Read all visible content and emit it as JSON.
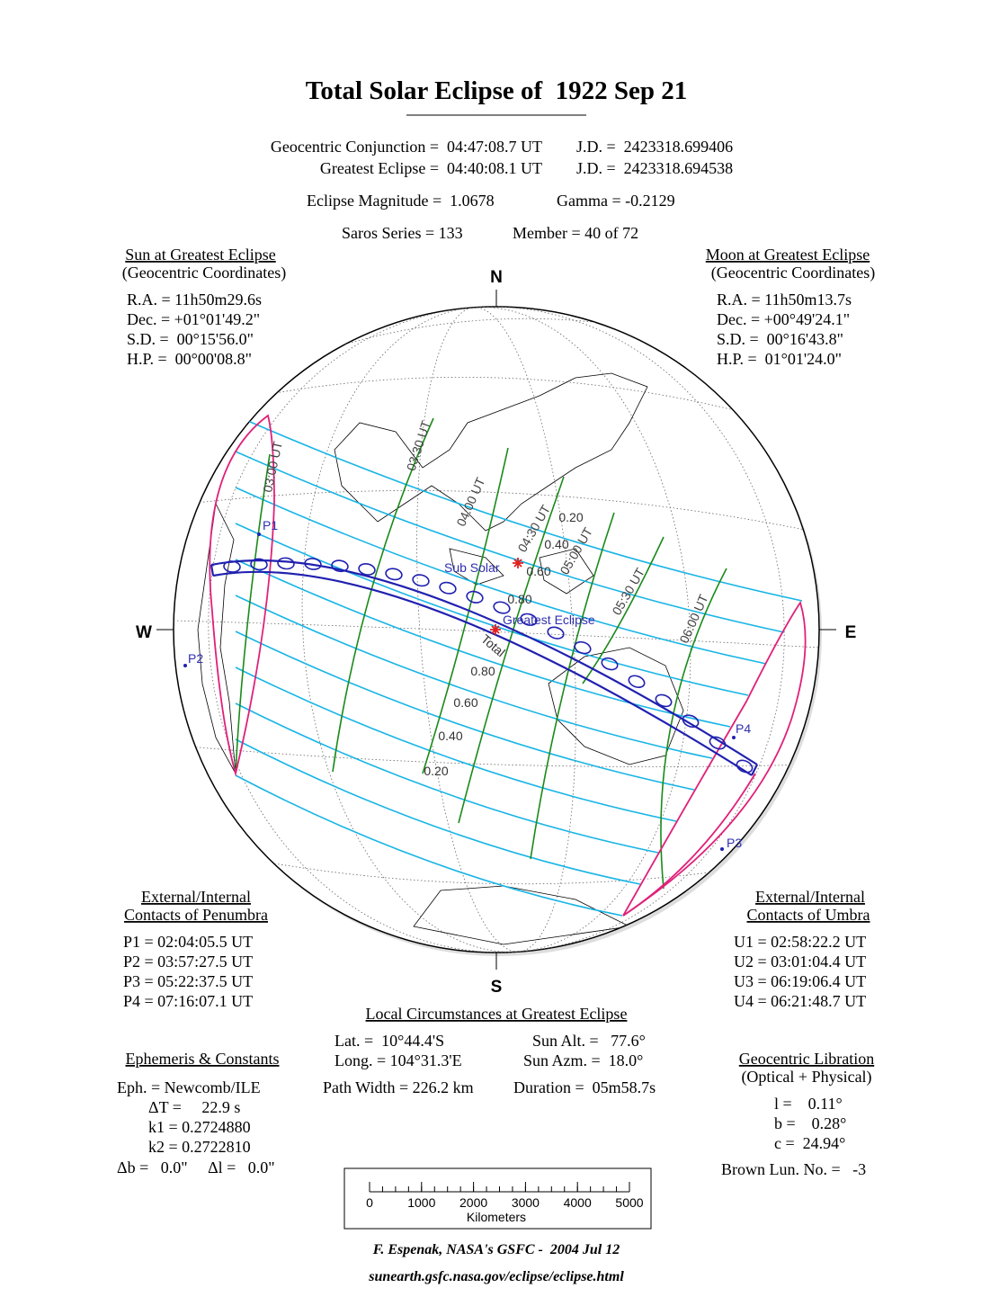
{
  "header": {
    "title": "Total Solar Eclipse of  1922 Sep 21",
    "conjunction": "Geocentric Conjunction =  04:47:08.7 UT",
    "conjunction_jd": "J.D. =  2423318.699406",
    "greatest": "Greatest Eclipse =  04:40:08.1 UT",
    "greatest_jd": "J.D. =  2423318.694538",
    "magnitude": "Eclipse Magnitude =  1.0678",
    "gamma": "Gamma = -0.2129",
    "saros": "Saros Series = 133",
    "member": "Member = 40 of 72"
  },
  "sun": {
    "title": "Sun at Greatest Eclipse",
    "subtitle": "(Geocentric Coordinates)",
    "lines": [
      "R.A. = 11h50m29.6s",
      "Dec. = +01°01'49.2\"",
      "S.D. =  00°15'56.0\"",
      "H.P. =  00°00'08.8\""
    ]
  },
  "moon": {
    "title": "Moon at Greatest Eclipse",
    "subtitle": "(Geocentric Coordinates)",
    "lines": [
      "R.A. = 11h50m13.7s",
      "Dec. = +00°49'24.1\"",
      "S.D. =  00°16'43.8\"",
      "H.P. =  01°01'24.0\""
    ]
  },
  "globe": {
    "compass": [
      "N",
      "S",
      "W",
      "E"
    ],
    "time_labels": [
      "03:00 UT",
      "03:30 UT",
      "04:00 UT",
      "04:30 UT",
      "05:00 UT",
      "05:30 UT",
      "06:00 UT"
    ],
    "magnitude_labels": [
      "0.20",
      "0.40",
      "0.60",
      "0.80",
      "0.80",
      "0.60",
      "0.40",
      "0.20"
    ],
    "sub_solar": "Sub Solar",
    "greatest_eclipse": "Greatest Eclipse",
    "total": "Total",
    "contacts": [
      "P1",
      "P2",
      "P3",
      "P4"
    ]
  },
  "penumbra": {
    "title": [
      "External/Internal",
      "Contacts of Penumbra"
    ],
    "lines": [
      "P1 = 02:04:05.5 UT",
      "P2 = 03:57:27.5 UT",
      "P3 = 05:22:37.5 UT",
      "P4 = 07:16:07.1 UT"
    ]
  },
  "umbra": {
    "title": [
      "External/Internal",
      "Contacts of Umbra"
    ],
    "lines": [
      "U1 = 02:58:22.2 UT",
      "U2 = 03:01:04.4 UT",
      "U3 = 06:19:06.4 UT",
      "U4 = 06:21:48.7 UT"
    ]
  },
  "local": {
    "title": "Local Circumstances at Greatest Eclipse",
    "lat": "Lat. =  10°44.4'S",
    "sun_alt": "Sun Alt. =   77.6°",
    "long": "Long. = 104°31.3'E",
    "sun_azm": "Sun Azm. =  18.0°",
    "path_width": "Path Width = 226.2 km",
    "duration": "Duration =  05m58.7s"
  },
  "ephemeris": {
    "title": "Ephemeris & Constants",
    "lines": [
      "Eph. = Newcomb/ILE",
      "ΔT =     22.9 s",
      "k1 = 0.2724880",
      "k2 = 0.2722810",
      "Δb =   0.0\"     Δl =   0.0\""
    ]
  },
  "libration": {
    "title": "Geocentric Libration",
    "subtitle": "(Optical + Physical)",
    "lines": [
      "l =    0.11°",
      "b =    0.28°",
      "c =  24.94°"
    ],
    "brown": "Brown Lun. No. =   -3"
  },
  "scale": {
    "ticks": [
      0,
      1000,
      2000,
      3000,
      4000,
      5000
    ],
    "unit": "Kilometers"
  },
  "footer": {
    "credit": "F. Espenak, NASA's GSFC -  2004 Jul 12",
    "url": "sunearth.gsfc.nasa.gov/eclipse/eclipse.html"
  }
}
